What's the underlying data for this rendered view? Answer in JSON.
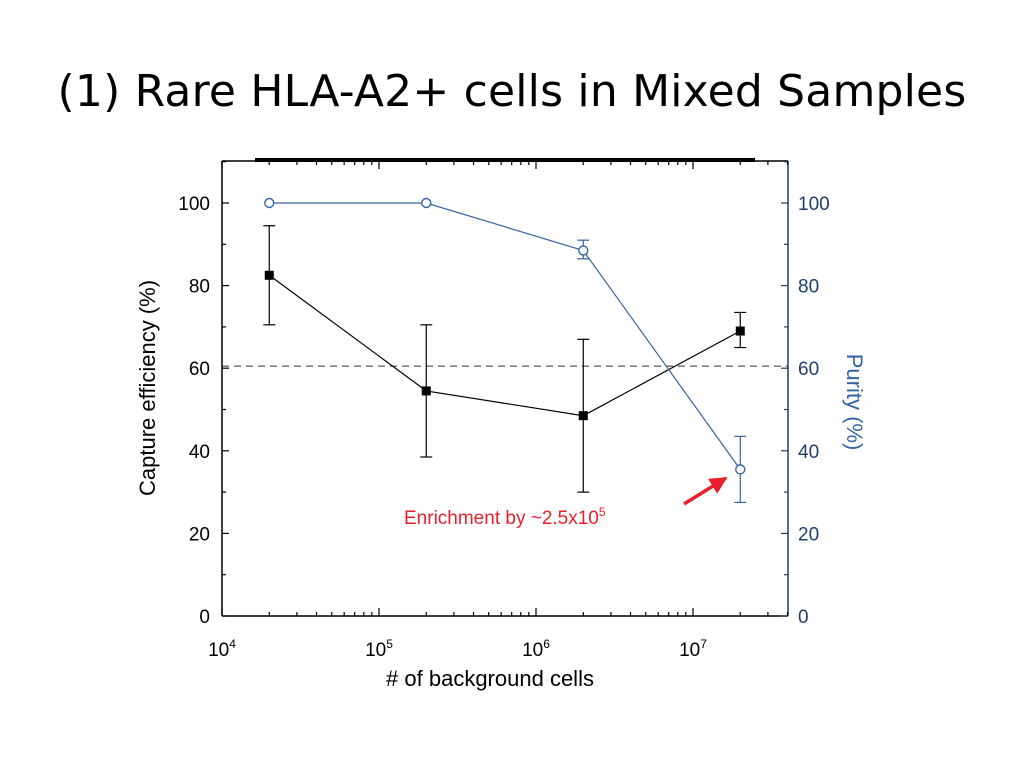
{
  "slide": {
    "title": "(1) Rare HLA-A2+ cells in Mixed Samples"
  },
  "chart_data": {
    "type": "line",
    "x_scale": "log",
    "xlabel": "# of background cells",
    "ylabel_left": "Capture efficiency (%)",
    "ylabel_right": "Purity (%)",
    "xlim": [
      10000,
      40000000
    ],
    "ylim_left": [
      0,
      110
    ],
    "ylim_right": [
      0,
      110
    ],
    "x_ticks": [
      {
        "value": 10000,
        "base": "10",
        "exp": "4"
      },
      {
        "value": 100000,
        "base": "10",
        "exp": "5"
      },
      {
        "value": 1000000,
        "base": "10",
        "exp": "6"
      },
      {
        "value": 10000000,
        "base": "10",
        "exp": "7"
      }
    ],
    "y_ticks_left": [
      "0",
      "20",
      "40",
      "60",
      "80",
      "100"
    ],
    "y_ticks_right": [
      "0",
      "20",
      "40",
      "60",
      "80",
      "100"
    ],
    "grid": false,
    "reference_line": {
      "axis": "left",
      "y": 60.5,
      "style": "dashed"
    },
    "colors": {
      "capture": "#000000",
      "purity": "#3565a3",
      "right_axis": "#1f3d6e",
      "annotation": "#e8202a"
    },
    "series": [
      {
        "key": "capture",
        "axis": "left",
        "marker": "filled-square",
        "points": [
          {
            "x": 20000,
            "y": 82.5,
            "err_low": 70.5,
            "err_high": 94.5
          },
          {
            "x": 200000,
            "y": 54.5,
            "err_low": 38.5,
            "err_high": 70.5
          },
          {
            "x": 2000000,
            "y": 48.5,
            "err_low": 30,
            "err_high": 67
          },
          {
            "x": 20000000,
            "y": 69,
            "err_low": 65,
            "err_high": 73.5
          }
        ]
      },
      {
        "key": "purity",
        "axis": "right",
        "marker": "open-circle",
        "points": [
          {
            "x": 20000,
            "y": 100
          },
          {
            "x": 200000,
            "y": 100
          },
          {
            "x": 2000000,
            "y": 88.5,
            "err_low": 86.5,
            "err_high": 91
          },
          {
            "x": 20000000,
            "y": 35.5,
            "err_low": 27.5,
            "err_high": 43.5
          }
        ]
      }
    ],
    "annotation": {
      "text": "Enrichment by ~2.5x10",
      "superscript": "5",
      "arrow_to": {
        "x": 20000000,
        "y": 35.5
      }
    }
  }
}
